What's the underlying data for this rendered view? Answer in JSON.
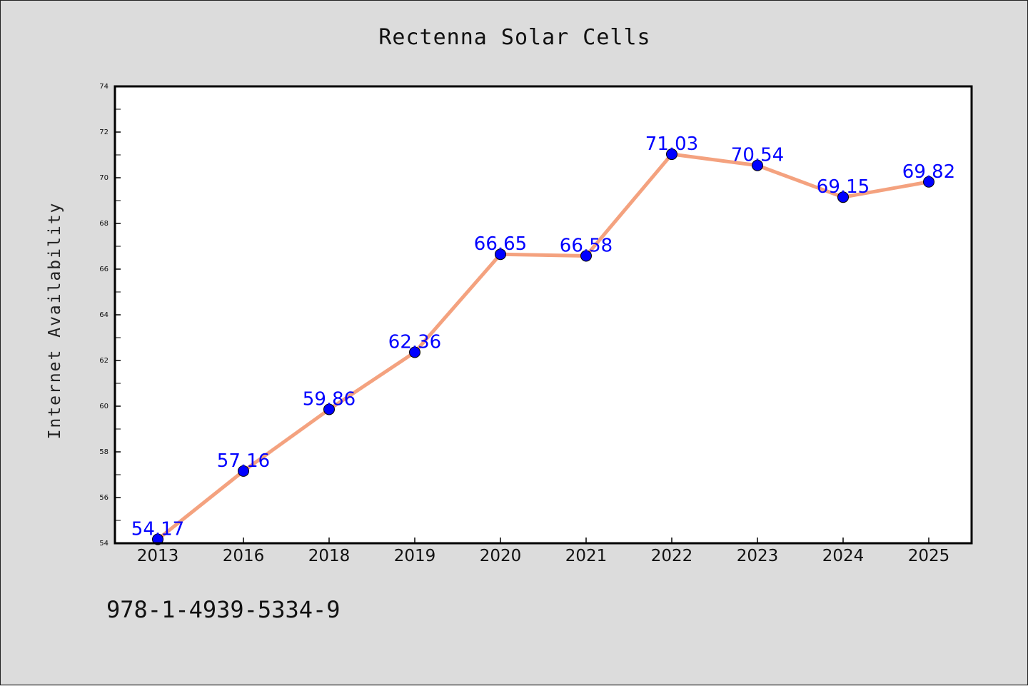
{
  "chart_data": {
    "type": "line",
    "title": "Rectenna Solar Cells",
    "xlabel": "",
    "ylabel": "Internet Availability",
    "categories": [
      "2013",
      "2016",
      "2018",
      "2019",
      "2020",
      "2021",
      "2022",
      "2023",
      "2024",
      "2025"
    ],
    "values": [
      54.17,
      57.16,
      59.86,
      62.36,
      66.65,
      66.58,
      71.03,
      70.54,
      69.15,
      69.82
    ],
    "data_labels": [
      "54.17",
      "57.16",
      "59.86",
      "62.36",
      "66.65",
      "66.58",
      "71.03",
      "70.54",
      "69.15",
      "69.82"
    ],
    "ylim": [
      54,
      74
    ],
    "yticks": [
      54,
      56,
      58,
      60,
      62,
      64,
      66,
      68,
      70,
      72,
      74
    ],
    "grid": false,
    "colors": {
      "line": "#f4a27f",
      "marker": "#0000ff",
      "label": "#0000ff"
    }
  },
  "footer": {
    "code": "978-1-4939-5334-9"
  }
}
